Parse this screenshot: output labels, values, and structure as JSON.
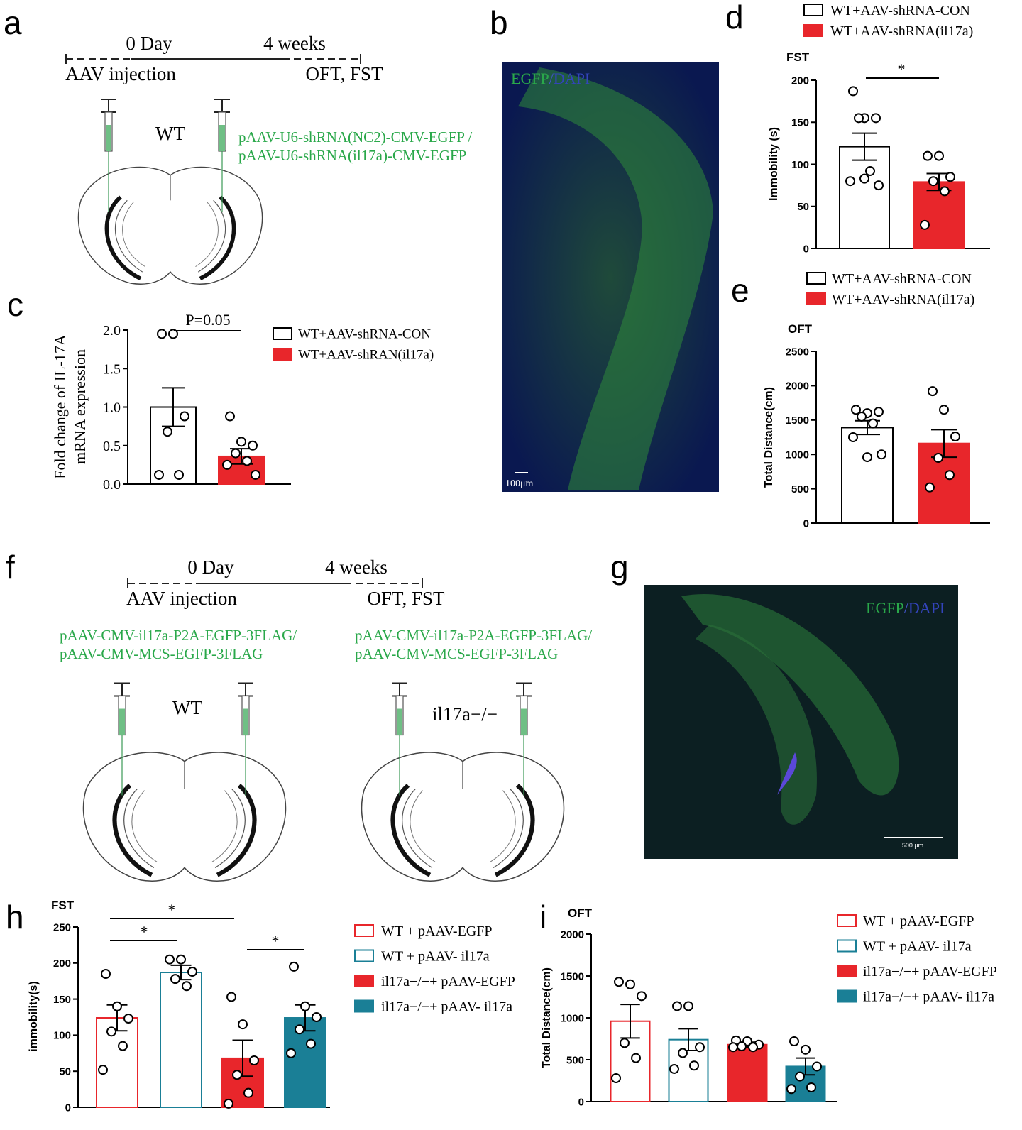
{
  "figure": {
    "panel_letters": [
      "a",
      "b",
      "c",
      "d",
      "e",
      "f",
      "g",
      "h",
      "i"
    ],
    "panel_a": {
      "timeline": {
        "start": "0 Day",
        "end": "4 weeks",
        "before": "AAV injection",
        "after": "OFT, FST"
      },
      "genotype": "WT",
      "constructs": [
        "pAAV-U6-shRNA(NC2)-CMV-EGFP /",
        "pAAV-U6-shRNA(il17a)-CMV-EGFP"
      ]
    },
    "panel_b": {
      "stain_green": "EGFP",
      "separator": "/",
      "stain_blue": "DAPI",
      "scale_bar": "100μm"
    },
    "panel_f": {
      "timeline": {
        "start": "0 Day",
        "end": "4 weeks",
        "before": "AAV injection",
        "after": "OFT, FST"
      },
      "left": {
        "constructs": [
          "pAAV-CMV-il17a-P2A-EGFP-3FLAG/",
          "pAAV-CMV-MCS-EGFP-3FLAG"
        ],
        "genotype": "WT"
      },
      "right": {
        "constructs": [
          "pAAV-CMV-il17a-P2A-EGFP-3FLAG/",
          "pAAV-CMV-MCS-EGFP-3FLAG"
        ],
        "genotype": "il17a−/−"
      }
    },
    "panel_g": {
      "stain_green": "EGFP",
      "separator": "/",
      "stain_blue": "DAPI",
      "scale_bar": "500 μm"
    }
  },
  "chart_data": [
    {
      "type": "bar",
      "ylabel": [
        "Fold change of IL-17A",
        "mRNA expression"
      ],
      "ylim": [
        0,
        2
      ],
      "yticks": [
        {
          "value": 0,
          "label": "0.0"
        },
        0.5,
        {
          "value": 1,
          "label": "1.0"
        },
        1.5,
        {
          "value": 2,
          "label": "2.0"
        }
      ],
      "annotations": [
        "P=0.05"
      ],
      "series": [
        {
          "name": "WT+AAV-shRNA-CON",
          "color": "#000000",
          "style": "outline",
          "value": 1.0,
          "error": 0.25,
          "points": [
            1.95,
            1.95,
            0.88,
            0.68,
            0.12,
            0.12
          ]
        },
        {
          "name": "WT+AAV-shRAN(il17a)",
          "color": "#e8262b",
          "style": "filled",
          "value": 0.36,
          "error": 0.1,
          "points": [
            0.88,
            0.55,
            0.5,
            0.4,
            0.3,
            0.25,
            0.12
          ]
        }
      ]
    },
    {
      "type": "bar",
      "title": "FST",
      "ylabel": [
        "Immobility (s)"
      ],
      "ylim": [
        0,
        200
      ],
      "yticks": [
        0,
        50,
        100,
        150,
        200
      ],
      "annotations": [
        "*"
      ],
      "series": [
        {
          "name": "WT+AAV-shRNA-CON",
          "color": "#000000",
          "style": "outline",
          "value": 121,
          "error": 16,
          "points": [
            187,
            155,
            155,
            155,
            92,
            80,
            75,
            83
          ]
        },
        {
          "name": "WT+AAV-shRNA(il17a)",
          "color": "#e8262b",
          "style": "filled",
          "value": 79,
          "error": 10,
          "points": [
            110,
            110,
            85,
            80,
            68,
            28
          ]
        }
      ]
    },
    {
      "type": "bar",
      "title": "OFT",
      "ylabel": [
        "Total Distance(cm)"
      ],
      "ylim": [
        0,
        2500
      ],
      "yticks": [
        0,
        500,
        1000,
        1500,
        2000,
        2500
      ],
      "annotations": [],
      "series": [
        {
          "name": "WT+AAV-shRNA-CON",
          "color": "#000000",
          "style": "outline",
          "value": 1390,
          "error": 100,
          "points": [
            1650,
            1600,
            1620,
            1550,
            1450,
            1250,
            1000,
            960
          ]
        },
        {
          "name": "WT+AAV-shRNA(il17a)",
          "color": "#e8262b",
          "style": "filled",
          "value": 1160,
          "error": 200,
          "points": [
            1920,
            1650,
            1260,
            950,
            700,
            520
          ]
        }
      ]
    },
    {
      "type": "bar",
      "title": "FST",
      "ylabel": [
        "immobility(s)"
      ],
      "ylim": [
        0,
        250
      ],
      "yticks": [
        0,
        50,
        100,
        150,
        200,
        250
      ],
      "annotations": [
        "*",
        "*",
        "*"
      ],
      "series": [
        {
          "name": "WT + pAAV-EGFP",
          "color": "#e8262b",
          "style": "outline",
          "value": 124,
          "error": 18,
          "points": [
            185,
            140,
            123,
            105,
            85,
            52
          ]
        },
        {
          "name": "WT + pAAV- il17a",
          "color": "#1a7f96",
          "style": "outline",
          "value": 187,
          "error": 10,
          "points": [
            205,
            205,
            188,
            178,
            168
          ]
        },
        {
          "name": "il17a−/−+ pAAV-EGFP",
          "color": "#e8262b",
          "style": "filled",
          "value": 68,
          "error": 25,
          "points": [
            153,
            115,
            65,
            45,
            20,
            5
          ]
        },
        {
          "name": "il17a−/−+ pAAV- il17a",
          "color": "#1a7f96",
          "style": "filled",
          "value": 124,
          "error": 18,
          "points": [
            195,
            140,
            125,
            108,
            88,
            75
          ]
        }
      ]
    },
    {
      "type": "bar",
      "title": "OFT",
      "ylabel": [
        "Total Distance(cm)"
      ],
      "ylim": [
        0,
        2000
      ],
      "yticks": [
        0,
        500,
        1000,
        1500,
        2000
      ],
      "annotations": [],
      "series": [
        {
          "name": "WT + pAAV-EGFP",
          "color": "#e8262b",
          "style": "outline",
          "value": 960,
          "error": 200,
          "points": [
            1430,
            1400,
            1260,
            700,
            520,
            280
          ]
        },
        {
          "name": "WT + pAAV- il17a",
          "color": "#1a7f96",
          "style": "outline",
          "value": 740,
          "error": 130,
          "points": [
            1140,
            1140,
            650,
            580,
            430,
            390
          ]
        },
        {
          "name": "il17a−/−+ pAAV-EGFP",
          "color": "#e8262b",
          "style": "filled",
          "value": 680,
          "error": 30,
          "points": [
            730,
            720,
            680,
            660,
            650,
            650
          ]
        },
        {
          "name": "il17a−/−+ pAAV- il17a",
          "color": "#1a7f96",
          "style": "filled",
          "value": 420,
          "error": 100,
          "points": [
            720,
            620,
            420,
            300,
            170,
            150
          ]
        }
      ]
    }
  ]
}
